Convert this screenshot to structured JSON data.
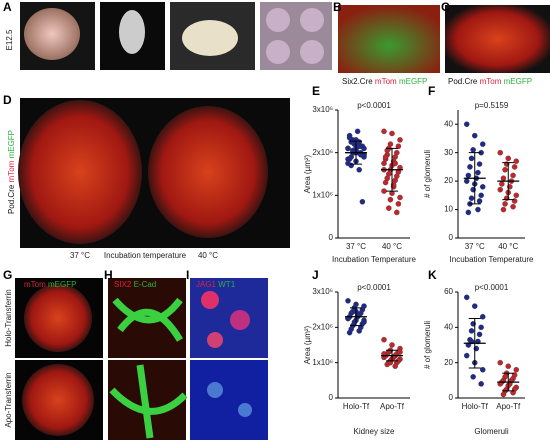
{
  "panel_labels": [
    "A",
    "B",
    "C",
    "D",
    "E",
    "F",
    "G",
    "H",
    "I",
    "J",
    "K"
  ],
  "image_labels": {
    "stage": "E12.5",
    "b": [
      "Six2.Cre",
      "mTom",
      "mEGFP"
    ],
    "c": [
      "Pod.Cre",
      "mTom",
      "mEGFP"
    ],
    "d": [
      "Pod.Cre",
      "mTom",
      "mEGFP"
    ],
    "d_axis": [
      "37 °C",
      "Incubation temperature",
      "40 °C"
    ],
    "g": [
      "mTom",
      "mEGFP"
    ],
    "h": [
      "SIX2",
      "E-Cad"
    ],
    "i": [
      "JAG1",
      "WT1"
    ],
    "g_rows": [
      "Holo-Transferrin",
      "Apo-Transferrin"
    ]
  },
  "chart_data": [
    {
      "type": "dot",
      "ylabel": "Area (µm²)",
      "xlabel": "Incubation Temperature",
      "annotation": "p<0.0001",
      "categories": [
        "37 °C",
        "40 °C"
      ],
      "ylim": [
        0,
        3000000
      ],
      "yticks": [
        0,
        {
          "value": 1000000,
          "label": "1x10⁶"
        },
        {
          "value": 2000000,
          "label": "2x10⁶"
        },
        {
          "value": 3000000,
          "label": "3x10⁶"
        }
      ],
      "groups": [
        {
          "color": "#1f2a8a",
          "mean": 2000000,
          "sd": 270000,
          "values": [
            2100000,
            2050000,
            1950000,
            2200000,
            2150000,
            2300000,
            2000000,
            1900000,
            2250000,
            2400000,
            2500000,
            1850000,
            1800000,
            2100000,
            2050000,
            1950000,
            2000000,
            2150000,
            1700000,
            1600000,
            2350000,
            2200000,
            1750000,
            2100000,
            1900000,
            2000000,
            850000,
            2050000,
            1950000,
            2250000,
            2150000,
            1850000,
            2000000,
            2100000,
            2300000,
            1950000
          ]
        },
        {
          "color": "#c0272d",
          "mean": 1600000,
          "sd": 500000,
          "values": [
            2500000,
            2450000,
            2300000,
            2200000,
            2150000,
            2100000,
            2000000,
            1950000,
            1900000,
            1850000,
            1800000,
            1750000,
            1700000,
            1650000,
            1600000,
            1550000,
            1500000,
            1450000,
            1400000,
            1350000,
            1300000,
            1200000,
            1100000,
            1050000,
            950000,
            900000,
            800000,
            700000,
            600000,
            2050000,
            1750000,
            1900000,
            1250000,
            1600000
          ]
        }
      ]
    },
    {
      "type": "dot",
      "ylabel": "# of glomeruli",
      "xlabel": "Incubation Temperature",
      "annotation": "p=0.5159",
      "categories": [
        "37 °C",
        "40 °C"
      ],
      "ylim": [
        0,
        45
      ],
      "yticks": [
        0,
        10,
        20,
        30,
        40
      ],
      "groups": [
        {
          "color": "#1f2a8a",
          "mean": 21,
          "sd": 9,
          "values": [
            40,
            36,
            33,
            31,
            30,
            28,
            26,
            25,
            23,
            22,
            21,
            20,
            19,
            18,
            17,
            15,
            14,
            13,
            12,
            10,
            9
          ]
        },
        {
          "color": "#c0272d",
          "mean": 20,
          "sd": 6.5,
          "values": [
            30,
            28,
            27,
            26,
            25,
            24,
            22,
            21,
            20,
            19,
            18,
            17,
            16,
            15,
            14,
            13,
            12,
            11,
            10
          ]
        }
      ]
    },
    {
      "type": "dot",
      "ylabel": "Area (µm²)",
      "xlabel": "Kidney size",
      "annotation": "p<0.0001",
      "categories": [
        "Holo-Tf",
        "Apo-Tf"
      ],
      "ylim": [
        0,
        3000000
      ],
      "yticks": [
        0,
        {
          "value": 1000000,
          "label": "1x10⁶"
        },
        {
          "value": 2000000,
          "label": "2x10⁶"
        },
        {
          "value": 3000000,
          "label": "3x10⁶"
        }
      ],
      "groups": [
        {
          "color": "#1f2a8a",
          "mean": 2300000,
          "sd": 250000,
          "values": [
            2750000,
            2650000,
            2600000,
            2550000,
            2500000,
            2450000,
            2400000,
            2400000,
            2350000,
            2300000,
            2300000,
            2250000,
            2200000,
            2200000,
            2150000,
            2100000,
            2050000,
            2000000,
            1950000,
            1900000,
            1850000,
            2350000,
            2250000,
            2450000,
            2150000,
            2550000
          ]
        },
        {
          "color": "#c0272d",
          "mean": 1200000,
          "sd": 150000,
          "values": [
            1650000,
            1500000,
            1400000,
            1350000,
            1300000,
            1300000,
            1250000,
            1250000,
            1200000,
            1200000,
            1150000,
            1150000,
            1100000,
            1100000,
            1050000,
            1050000,
            1000000,
            1000000,
            950000,
            900000,
            1200000,
            1150000,
            1250000,
            1100000,
            1300000,
            1000000
          ]
        }
      ]
    },
    {
      "type": "dot",
      "ylabel": "# of glomeruli",
      "xlabel": "Glomeruli",
      "annotation": "p<0.0001",
      "categories": [
        "Holo-Tf",
        "Apo-Tf"
      ],
      "ylim": [
        0,
        60
      ],
      "yticks": [
        0,
        20,
        40,
        60
      ],
      "groups": [
        {
          "color": "#1f2a8a",
          "mean": 31,
          "sd": 14,
          "values": [
            57,
            52,
            46,
            42,
            40,
            38,
            36,
            33,
            32,
            30,
            28,
            24,
            20,
            16,
            12,
            8,
            32
          ]
        },
        {
          "color": "#c0272d",
          "mean": 9,
          "sd": 5,
          "values": [
            20,
            18,
            16,
            14,
            13,
            12,
            11,
            10,
            10,
            9,
            8,
            8,
            7,
            6,
            5,
            5,
            4,
            3,
            2
          ]
        }
      ]
    }
  ]
}
